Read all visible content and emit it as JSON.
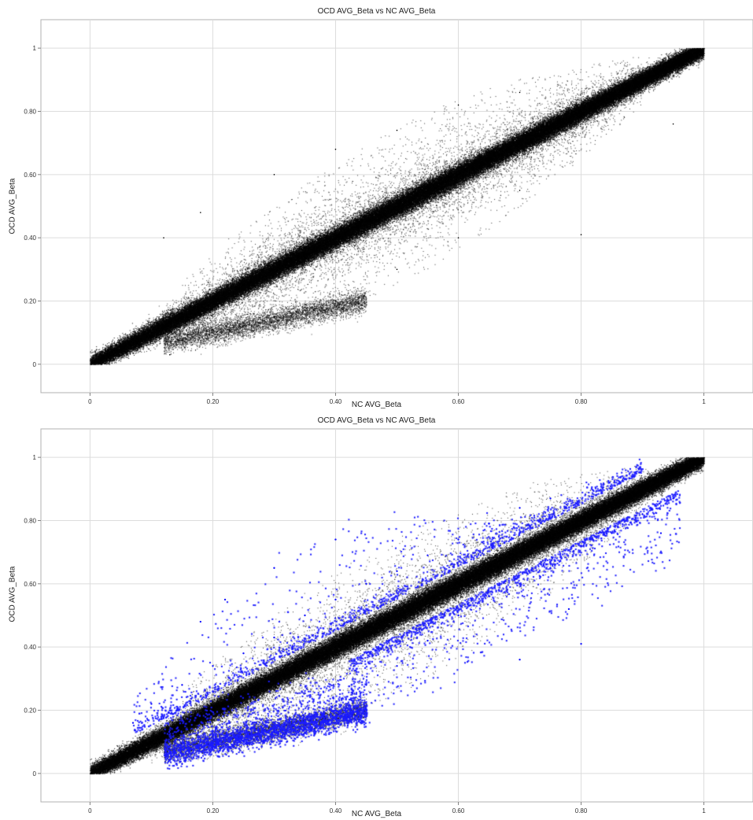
{
  "chart_data": [
    {
      "type": "scatter",
      "title": "OCD AVG_Beta vs NC AVG_Beta",
      "xlabel": "NC AVG_Beta",
      "ylabel": "OCD AVG_Beta",
      "xlim": [
        -0.08,
        1.08
      ],
      "ylim": [
        -0.09,
        1.09
      ],
      "grid": true,
      "x_ticks": [
        0,
        0.2,
        0.4,
        0.6,
        0.8,
        1
      ],
      "x_tick_labels": [
        "0",
        "0.20",
        "0.40",
        "0.60",
        "0.80",
        "1"
      ],
      "y_ticks": [
        0,
        0.2,
        0.4,
        0.6,
        0.8,
        1
      ],
      "y_tick_labels": [
        "0",
        "0.20",
        "0.40",
        "0.60",
        "0.80",
        "1"
      ],
      "series": [
        {
          "color": "#000000",
          "points": [
            [
              0.01,
              0.01
            ],
            [
              0.05,
              0.05
            ],
            [
              0.1,
              0.1
            ],
            [
              0.15,
              0.16
            ],
            [
              0.2,
              0.21
            ],
            [
              0.25,
              0.25
            ],
            [
              0.3,
              0.3
            ],
            [
              0.35,
              0.35
            ],
            [
              0.4,
              0.4
            ],
            [
              0.45,
              0.45
            ],
            [
              0.5,
              0.5
            ],
            [
              0.55,
              0.55
            ],
            [
              0.6,
              0.6
            ],
            [
              0.65,
              0.65
            ],
            [
              0.7,
              0.7
            ],
            [
              0.75,
              0.75
            ],
            [
              0.8,
              0.8
            ],
            [
              0.85,
              0.85
            ],
            [
              0.9,
              0.9
            ],
            [
              0.95,
              0.95
            ],
            [
              0.99,
              0.99
            ],
            [
              0.15,
              0.08
            ],
            [
              0.2,
              0.11
            ],
            [
              0.25,
              0.13
            ],
            [
              0.3,
              0.15
            ],
            [
              0.35,
              0.18
            ],
            [
              0.4,
              0.2
            ],
            [
              0.12,
              0.4
            ],
            [
              0.18,
              0.48
            ],
            [
              0.3,
              0.6
            ],
            [
              0.4,
              0.68
            ],
            [
              0.5,
              0.74
            ],
            [
              0.6,
              0.82
            ],
            [
              0.7,
              0.86
            ],
            [
              0.5,
              0.3
            ],
            [
              0.6,
              0.4
            ],
            [
              0.7,
              0.55
            ],
            [
              0.8,
              0.41
            ],
            [
              0.95,
              0.76
            ],
            [
              0.13,
              0.03
            ]
          ]
        }
      ]
    },
    {
      "type": "scatter",
      "title": "OCD AVG_Beta vs NC AVG_Beta",
      "xlabel": "NC AVG_Beta",
      "ylabel": "OCD AVG_Beta",
      "xlim": [
        -0.08,
        1.08
      ],
      "ylim": [
        -0.09,
        1.09
      ],
      "grid": true,
      "x_ticks": [
        0,
        0.2,
        0.4,
        0.6,
        0.8,
        1
      ],
      "x_tick_labels": [
        "0",
        "0.20",
        "0.40",
        "0.60",
        "0.80",
        "1"
      ],
      "y_ticks": [
        0,
        0.2,
        0.4,
        0.6,
        0.8,
        1
      ],
      "y_tick_labels": [
        "0",
        "0.20",
        "0.40",
        "0.60",
        "0.80",
        "1"
      ],
      "series": [
        {
          "color": "#000000",
          "points": [
            [
              0.01,
              0.01
            ],
            [
              0.05,
              0.05
            ],
            [
              0.1,
              0.1
            ],
            [
              0.15,
              0.15
            ],
            [
              0.2,
              0.2
            ],
            [
              0.25,
              0.25
            ],
            [
              0.3,
              0.3
            ],
            [
              0.35,
              0.35
            ],
            [
              0.4,
              0.4
            ],
            [
              0.45,
              0.45
            ],
            [
              0.5,
              0.5
            ],
            [
              0.55,
              0.55
            ],
            [
              0.6,
              0.6
            ],
            [
              0.65,
              0.65
            ],
            [
              0.7,
              0.7
            ],
            [
              0.75,
              0.75
            ],
            [
              0.8,
              0.8
            ],
            [
              0.85,
              0.85
            ],
            [
              0.9,
              0.9
            ],
            [
              0.95,
              0.95
            ],
            [
              0.99,
              0.99
            ]
          ]
        },
        {
          "color": "#1a1aff",
          "points": [
            [
              0.07,
              0.16
            ],
            [
              0.1,
              0.22
            ],
            [
              0.15,
              0.28
            ],
            [
              0.2,
              0.34
            ],
            [
              0.25,
              0.38
            ],
            [
              0.3,
              0.43
            ],
            [
              0.35,
              0.5
            ],
            [
              0.4,
              0.55
            ],
            [
              0.45,
              0.6
            ],
            [
              0.5,
              0.64
            ],
            [
              0.55,
              0.69
            ],
            [
              0.6,
              0.74
            ],
            [
              0.65,
              0.79
            ],
            [
              0.7,
              0.84
            ],
            [
              0.75,
              0.87
            ],
            [
              0.18,
              0.48
            ],
            [
              0.22,
              0.55
            ],
            [
              0.3,
              0.65
            ],
            [
              0.4,
              0.74
            ],
            [
              0.13,
              0.07
            ],
            [
              0.18,
              0.1
            ],
            [
              0.22,
              0.12
            ],
            [
              0.26,
              0.13
            ],
            [
              0.3,
              0.15
            ],
            [
              0.35,
              0.17
            ],
            [
              0.4,
              0.2
            ],
            [
              0.45,
              0.28
            ],
            [
              0.5,
              0.34
            ],
            [
              0.55,
              0.42
            ],
            [
              0.6,
              0.5
            ],
            [
              0.65,
              0.56
            ],
            [
              0.7,
              0.6
            ],
            [
              0.75,
              0.65
            ],
            [
              0.8,
              0.72
            ],
            [
              0.85,
              0.76
            ],
            [
              0.9,
              0.82
            ],
            [
              0.95,
              0.87
            ],
            [
              0.8,
              0.41
            ],
            [
              0.78,
              0.52
            ],
            [
              0.7,
              0.36
            ],
            [
              0.15,
              0.03
            ],
            [
              0.93,
              0.76
            ]
          ]
        }
      ]
    }
  ]
}
